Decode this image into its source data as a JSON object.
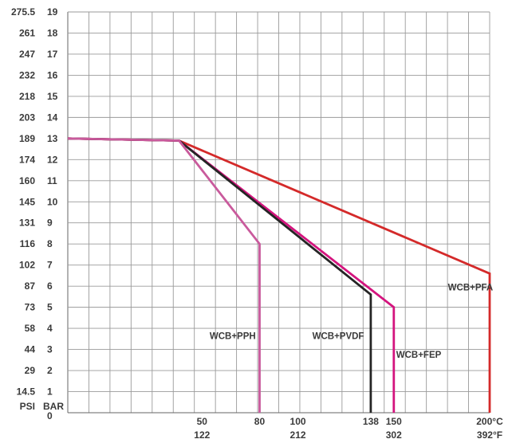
{
  "chart_data": {
    "type": "line",
    "title": "",
    "grid": true,
    "x_unit_primary": "°C",
    "x_unit_secondary": "°F",
    "y_unit_primary": "BAR",
    "y_unit_secondary": "PSI",
    "xlim": [
      -20,
      200
    ],
    "ylim": [
      0,
      19
    ],
    "y_ticks_bar": [
      "0",
      "1",
      "2",
      "3",
      "4",
      "5",
      "6",
      "7",
      "8",
      "9",
      "10",
      "11",
      "12",
      "13",
      "14",
      "15",
      "16",
      "17",
      "18",
      "19"
    ],
    "y_ticks_psi": [
      "14.5",
      "29",
      "44",
      "58",
      "73",
      "87",
      "102",
      "116",
      "131",
      "145",
      "160",
      "174",
      "189",
      "203",
      "218",
      "232",
      "247",
      "261",
      "275.5"
    ],
    "y_ticks_psi_values": [
      1,
      2,
      3,
      4,
      5,
      6,
      7,
      8,
      9,
      10,
      11,
      12,
      13,
      14,
      15,
      16,
      17,
      18,
      19
    ],
    "x_ticks_c": [
      {
        "value": 50,
        "label": "50"
      },
      {
        "value": 80,
        "label": "80"
      },
      {
        "value": 100,
        "label": "100"
      },
      {
        "value": 138,
        "label": "138"
      },
      {
        "value": 150,
        "label": "150"
      },
      {
        "value": 200,
        "label": "200°C"
      }
    ],
    "x_ticks_f": [
      {
        "value": 50,
        "label": "122"
      },
      {
        "value": 100,
        "label": "212"
      },
      {
        "value": 150,
        "label": "302"
      },
      {
        "value": 200,
        "label": "392°F"
      }
    ],
    "series": [
      {
        "name": "WCB+PFA",
        "color": "#d42a2a",
        "points": [
          [
            -20,
            13
          ],
          [
            38,
            12.9
          ],
          [
            200,
            6.6
          ],
          [
            200,
            0
          ]
        ],
        "label_at": [
          190,
          5.8
        ]
      },
      {
        "name": "WCB+FEP",
        "color": "#d4147e",
        "points": [
          [
            -20,
            13
          ],
          [
            38,
            12.9
          ],
          [
            150,
            5
          ],
          [
            150,
            0
          ]
        ],
        "label_at": [
          163,
          2.6
        ]
      },
      {
        "name": "WCB+PVDF",
        "color": "#252525",
        "points": [
          [
            -20,
            13
          ],
          [
            38,
            12.9
          ],
          [
            138,
            5.6
          ],
          [
            138,
            0
          ]
        ],
        "label_at": [
          121,
          3.5
        ]
      },
      {
        "name": "WCB+PPH",
        "color": "#c95a9c",
        "points": [
          [
            -20,
            13
          ],
          [
            38,
            12.9
          ],
          [
            80,
            8
          ],
          [
            80,
            0
          ]
        ],
        "label_at": [
          66,
          3.5
        ]
      }
    ]
  }
}
